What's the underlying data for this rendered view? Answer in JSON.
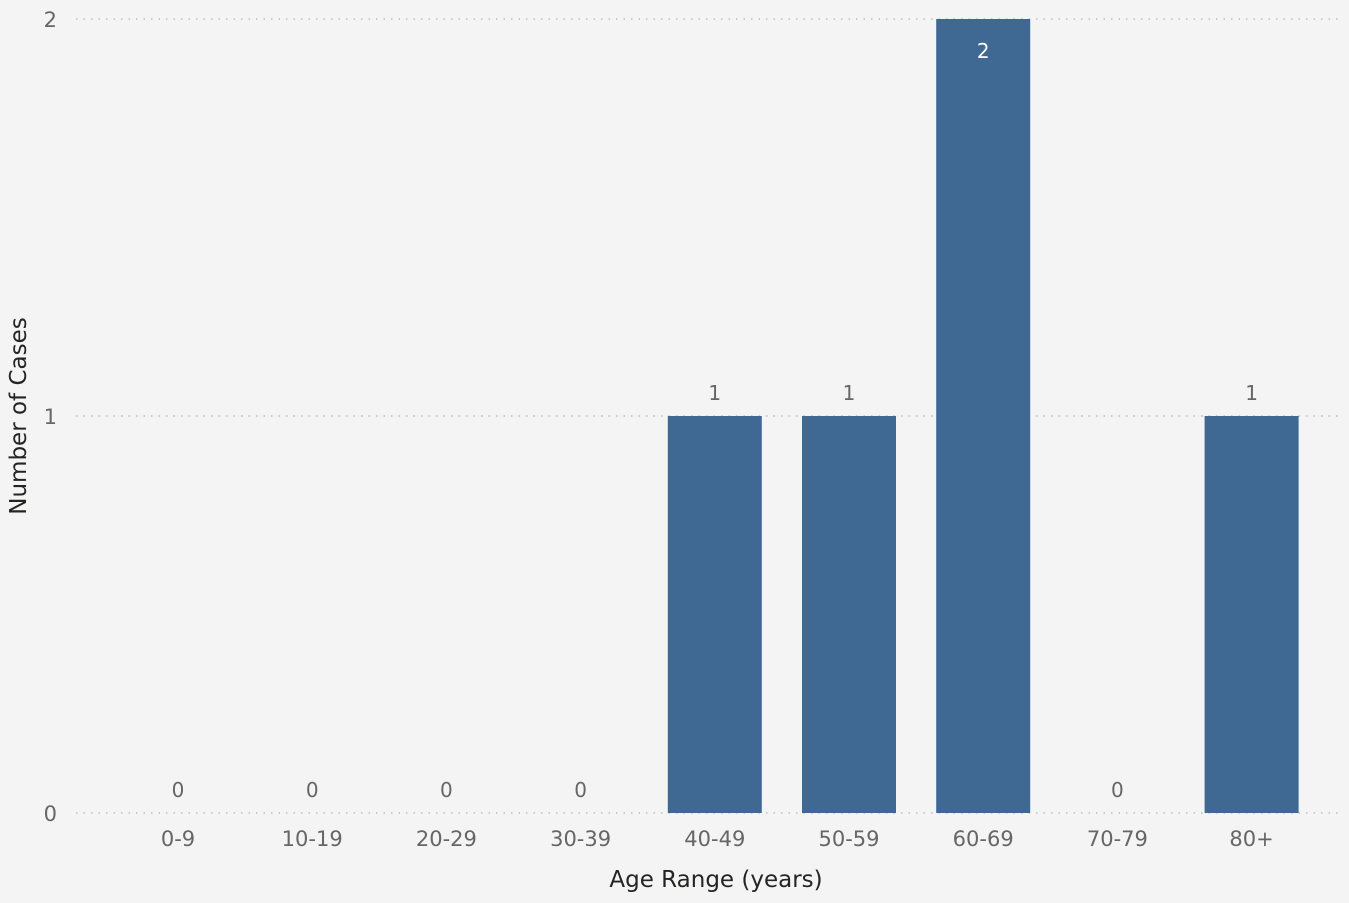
{
  "chart_data": {
    "type": "bar",
    "categories": [
      "0-9",
      "10-19",
      "20-29",
      "30-39",
      "40-49",
      "50-59",
      "60-69",
      "70-79",
      "80+"
    ],
    "values": [
      0,
      0,
      0,
      0,
      1,
      1,
      2,
      0,
      1
    ],
    "xlabel": "Age Range (years)",
    "ylabel": "Number of Cases",
    "ylim": [
      0,
      2
    ],
    "yticks": [
      "0",
      "1",
      "2"
    ],
    "grid": true,
    "data_labels": true,
    "colors": {
      "bar": "#3f6892",
      "label_outside": "#666666",
      "label_inside": "#ffffff",
      "background": "#f4f4f4",
      "gridline": "#bdbdbd"
    }
  }
}
